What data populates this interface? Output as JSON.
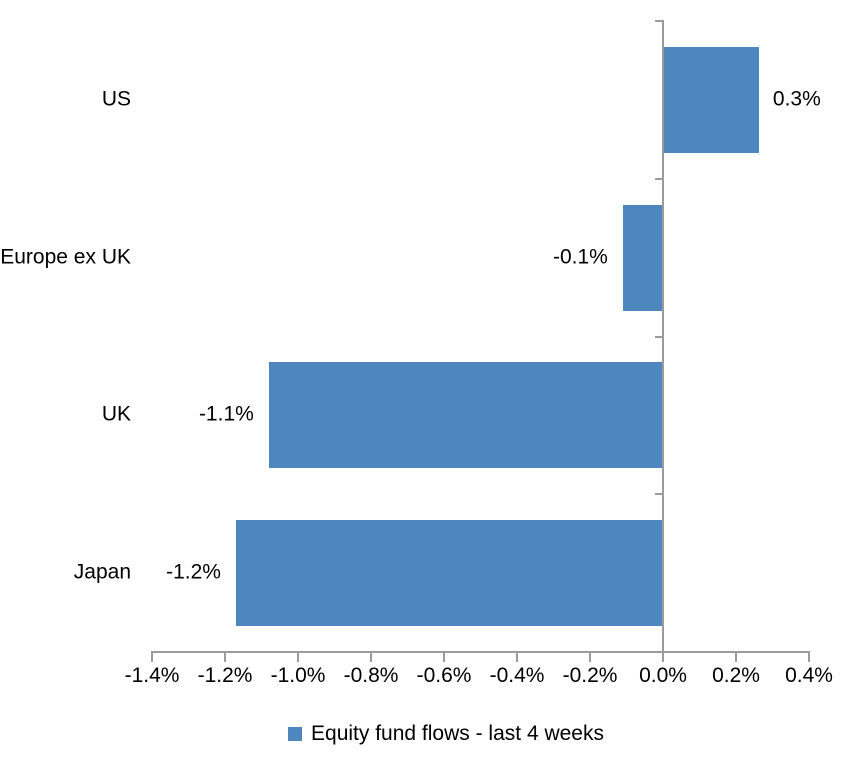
{
  "chart_data": {
    "type": "bar",
    "orientation": "horizontal",
    "title": "",
    "xlabel": "",
    "ylabel": "",
    "categories": [
      "US",
      "Europe ex UK",
      "UK",
      "Japan"
    ],
    "series": [
      {
        "name": "Equity fund flows - last 4 weeks",
        "values": [
          0.26,
          -0.11,
          -1.08,
          -1.17
        ],
        "data_labels": [
          "0.3%",
          "-0.1%",
          "-1.1%",
          "-1.2%"
        ]
      }
    ],
    "xlim": [
      -1.4,
      0.4
    ],
    "x_tick_step": 0.2,
    "x_tick_labels": [
      "-1.4%",
      "-1.2%",
      "-1.0%",
      "-0.8%",
      "-0.6%",
      "-0.4%",
      "-0.2%",
      "0.0%",
      "0.2%",
      "0.4%"
    ],
    "grid": false,
    "legend": {
      "position": "bottom",
      "entries": [
        {
          "label": "Equity fund flows - last 4 weeks",
          "color": "#4E87BE"
        }
      ]
    },
    "colors": {
      "bar": "#4E87BE",
      "axis": "#9B9B9B",
      "text": "#000000",
      "background": "#FFFFFF"
    }
  }
}
